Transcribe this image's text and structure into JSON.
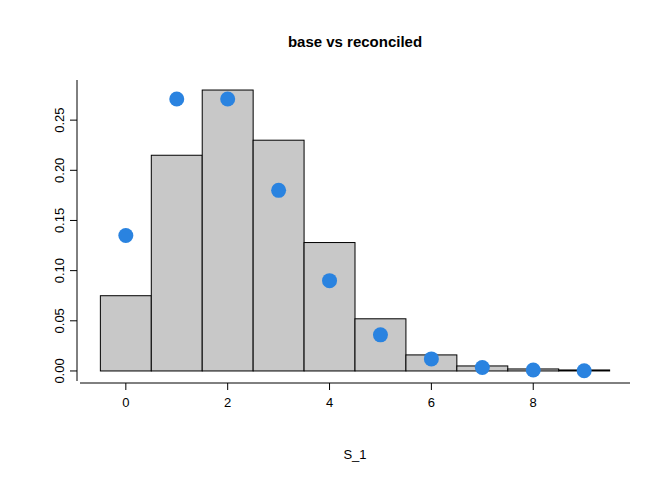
{
  "chart_data": {
    "type": "histogram",
    "title": "base vs reconciled",
    "x_label": "S_1",
    "xlim": [
      -0.9,
      9.9
    ],
    "ylim": [
      -0.01,
      0.29
    ],
    "xticks": [
      0,
      2,
      4,
      6,
      8
    ],
    "yticks": [
      {
        "value": 0,
        "label": "0.00"
      },
      {
        "value": 0.05,
        "label": "0.05"
      },
      {
        "value": 0.1,
        "label": "0.10"
      },
      {
        "value": 0.15,
        "label": "0.15"
      },
      {
        "value": 0.2,
        "label": "0.20"
      },
      {
        "value": 0.25,
        "label": "0.25"
      }
    ],
    "grid": false,
    "series": [
      {
        "type": "histogram",
        "color": "#c8c8c8",
        "bins": [
          -0.5,
          0.5,
          1.5,
          2.5,
          3.5,
          4.5,
          5.5,
          6.5,
          7.5,
          8.5,
          9.5
        ],
        "values": [
          0.075,
          0.215,
          0.28,
          0.23,
          0.128,
          0.052,
          0.016,
          0.005,
          0.002,
          0.001
        ]
      },
      {
        "type": "scatter",
        "color": "#2a83e0",
        "marker": "circle",
        "x": [
          0,
          1,
          2,
          3,
          4,
          5,
          6,
          7,
          8,
          9
        ],
        "values": [
          0.135,
          0.271,
          0.271,
          0.18,
          0.09,
          0.036,
          0.012,
          0.0034,
          0.0009,
          0.0002
        ]
      }
    ]
  }
}
